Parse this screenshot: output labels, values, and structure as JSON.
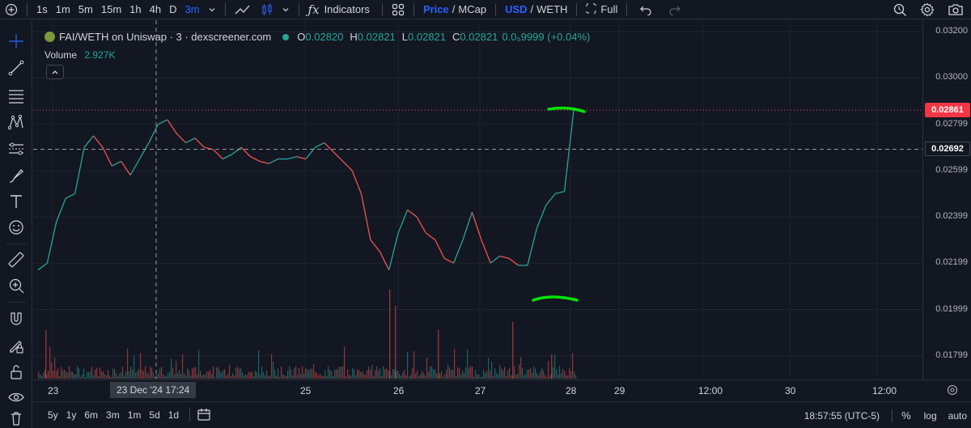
{
  "toolbar": {
    "intervals": [
      "1s",
      "1m",
      "5m",
      "15m",
      "1h",
      "4h",
      "D",
      "3m"
    ],
    "active_interval": "3m",
    "indicators_label": "Indicators",
    "price_label": "Price",
    "mcap_label": "MCap",
    "price_slash": "/",
    "usd_label": "USD",
    "weth_label": "WETH",
    "usd_slash": "/",
    "full_label": "Full",
    "accent": "#2962ff"
  },
  "legend": {
    "symbol": "FAI/WETH on Uniswap · 3 · dexscreener.com",
    "o_key": "O",
    "o_val": "0.02820",
    "h_key": "H",
    "h_val": "0.02821",
    "l_key": "L",
    "l_val": "0.02821",
    "c_key": "C",
    "c_val": "0.02821",
    "change": "0.0₅9999 (+0.04%)",
    "volume_label": "Volume",
    "volume_value": "2.927K"
  },
  "price_axis": {
    "labels": [
      "0.03200",
      "0.03000",
      "0.02799",
      "0.02599",
      "0.02399",
      "0.02199",
      "0.01999",
      "0.01799"
    ],
    "current_price": "0.02861",
    "crosshair_price": "0.02692"
  },
  "time_axis": {
    "labels": [
      "23",
      "25",
      "26",
      "27",
      "28",
      "29",
      "12:00",
      "30",
      "12:00"
    ],
    "crosshair_time": "23 Dec '24   17:24"
  },
  "bottombar": {
    "ranges": [
      "5y",
      "1y",
      "6m",
      "3m",
      "1m",
      "5d",
      "1d"
    ],
    "clock": "18:57:55 (UTC-5)",
    "percent_label": "%",
    "log_label": "log",
    "auto_label": "auto"
  },
  "colors": {
    "up": "#26a69a",
    "down": "#ef5350",
    "annotation": "#00e600"
  },
  "chart_data": {
    "type": "line",
    "series": [
      {
        "values": [
          0.0217,
          0.022,
          0.0238,
          0.0248,
          0.025,
          0.027,
          0.0275,
          0.027,
          0.0262,
          0.0264,
          0.0258,
          0.0265,
          0.0272,
          0.028,
          0.0282,
          0.0276,
          0.0272,
          0.0274,
          0.027,
          0.0269,
          0.0265,
          0.0267,
          0.027,
          0.0266,
          0.0264,
          0.0263,
          0.0265,
          0.0265,
          0.0266,
          0.0265,
          0.027,
          0.0272,
          0.0268,
          0.0264,
          0.026,
          0.025,
          0.023,
          0.0225,
          0.0217,
          0.0233,
          0.0243,
          0.024,
          0.0233,
          0.023,
          0.0222,
          0.022,
          0.023,
          0.0242,
          0.023,
          0.022,
          0.0223,
          0.0222,
          0.0219,
          0.0219,
          0.0235,
          0.0245,
          0.025,
          0.0251,
          0.02861
        ]
      }
    ],
    "ylim": [
      0.017,
      0.0325
    ],
    "grid": true
  }
}
